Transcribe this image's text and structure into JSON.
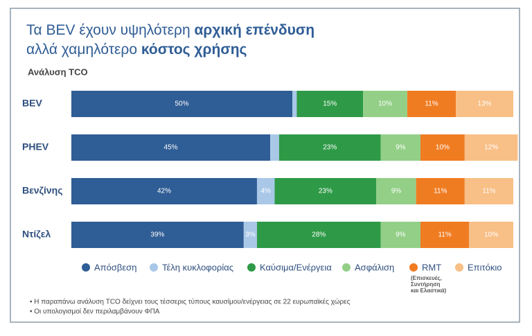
{
  "chart_data": {
    "type": "stacked-bar-horizontal",
    "title": [
      [
        "Τα BEV έχουν υψηλότερη ",
        "αρχική επένδυση"
      ],
      [
        "αλλά χαμηλότερο ",
        "κόστος χρήσης"
      ]
    ],
    "subtitle": "Ανάλυση TCO",
    "categories": [
      "BEV",
      "PHEV",
      "Βενζίνης",
      "Ντίζελ"
    ],
    "xlim": [
      0,
      100
    ],
    "series": [
      {
        "name": "Απόσβεση",
        "color": "#2f5d95",
        "values": [
          50,
          45,
          42,
          39
        ],
        "value_labels": [
          "50%",
          "45%",
          "42%",
          "39%"
        ]
      },
      {
        "name": "Τέλη κυκλοφορίας",
        "color": "#a9c8e8",
        "values": [
          1,
          2,
          4,
          3
        ],
        "value_labels": [
          null,
          null,
          "4%",
          "3%"
        ]
      },
      {
        "name": "Καύσιμα/Ενέργεια",
        "color": "#2e9a47",
        "values": [
          15,
          23,
          23,
          28
        ],
        "value_labels": [
          "15%",
          "23%",
          "23%",
          "28%"
        ]
      },
      {
        "name": "Ασφάλιση",
        "color": "#93cf87",
        "values": [
          10,
          9,
          9,
          9
        ],
        "value_labels": [
          "10%",
          "9%",
          "9%",
          "9%"
        ]
      },
      {
        "name": "RMT",
        "color": "#f07c22",
        "values": [
          11,
          10,
          11,
          11
        ],
        "value_labels": [
          "11%",
          "10%",
          "11%",
          "11%"
        ],
        "note": [
          "(Επισκευές,",
          "Συντήρηση",
          "και Ελαστικά)"
        ]
      },
      {
        "name": "Επιτόκιο",
        "color": "#f8bf86",
        "values": [
          13,
          12,
          11,
          10
        ],
        "value_labels": [
          "13%",
          "12%",
          "11%",
          "10%"
        ]
      }
    ],
    "footnotes": [
      "• Η παραπάνω ανάλυση TCO δείχνει τους τέσσερις τύπους καυσίμου/ενέργειας σε 22 ευρωπαϊκές χώρες",
      "• Οι υπολογισμοί δεν περιλαμβάνουν ΦΠΑ"
    ]
  }
}
